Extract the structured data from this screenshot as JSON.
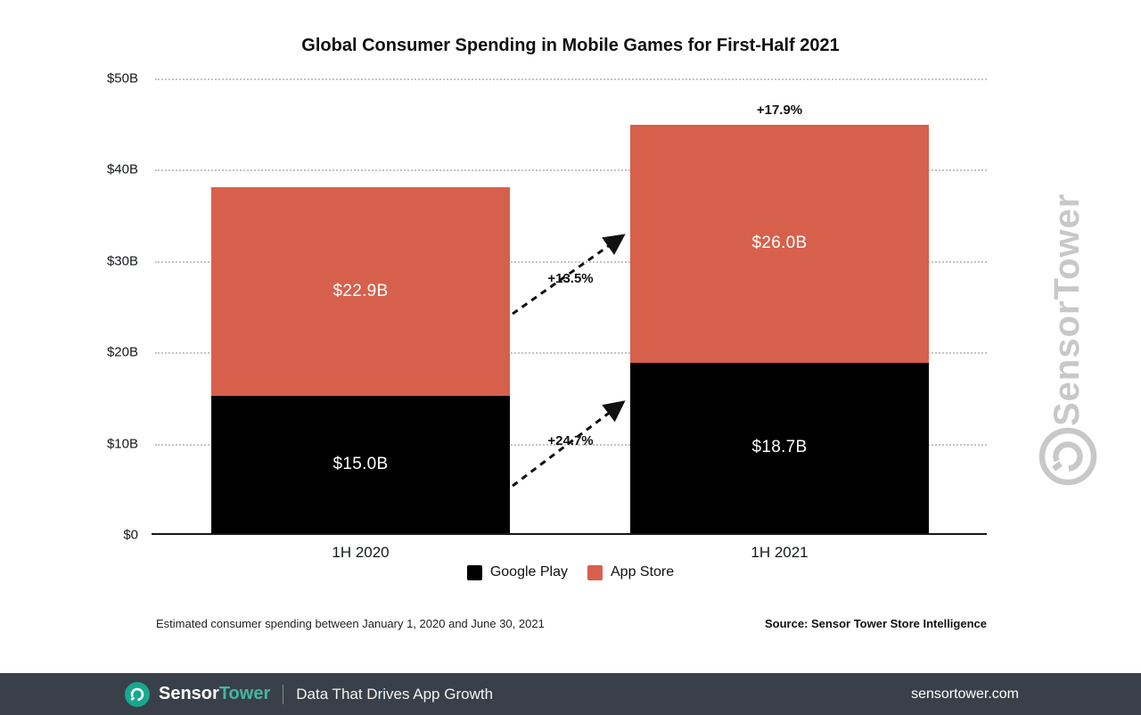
{
  "chart_data": {
    "type": "bar",
    "stacked": true,
    "title": "Global Consumer Spending in Mobile Games for First-Half 2021",
    "categories": [
      "1H 2020",
      "1H 2021"
    ],
    "series": [
      {
        "name": "Google Play",
        "color": "#000000",
        "values": [
          15.0,
          18.7
        ],
        "value_labels": [
          "$15.0B",
          "$18.7B"
        ]
      },
      {
        "name": "App Store",
        "color": "#d7604c",
        "values": [
          22.9,
          26.0
        ],
        "value_labels": [
          "$22.9B",
          "$26.0B"
        ]
      }
    ],
    "totals": [
      37.9,
      44.7
    ],
    "total_growth_label": "+17.9%",
    "growth_labels": {
      "app_store": "+13.5%",
      "google_play": "+24.7%"
    },
    "yticks": [
      "$0",
      "$10B",
      "$20B",
      "$30B",
      "$40B",
      "$50B"
    ],
    "ylim": [
      0,
      50
    ],
    "xlabel": "",
    "ylabel": "",
    "grid": "dotted-horizontal",
    "legend_position": "bottom"
  },
  "footnote": {
    "left": "Estimated consumer spending between January 1, 2020 and June 30, 2021",
    "right": "Source: Sensor Tower Store Intelligence"
  },
  "watermark": {
    "text": "SensorTower"
  },
  "footer": {
    "brand_sensor": "Sensor",
    "brand_tower": "Tower",
    "tagline": "Data That Drives App Growth",
    "url": "sensortower.com"
  },
  "theme": {
    "app_store_red": "#d7604c",
    "google_play_black": "#000000",
    "footer_bg": "#394049",
    "brand_teal": "#19a78f",
    "watermark_gray": "#c8c8c8"
  }
}
